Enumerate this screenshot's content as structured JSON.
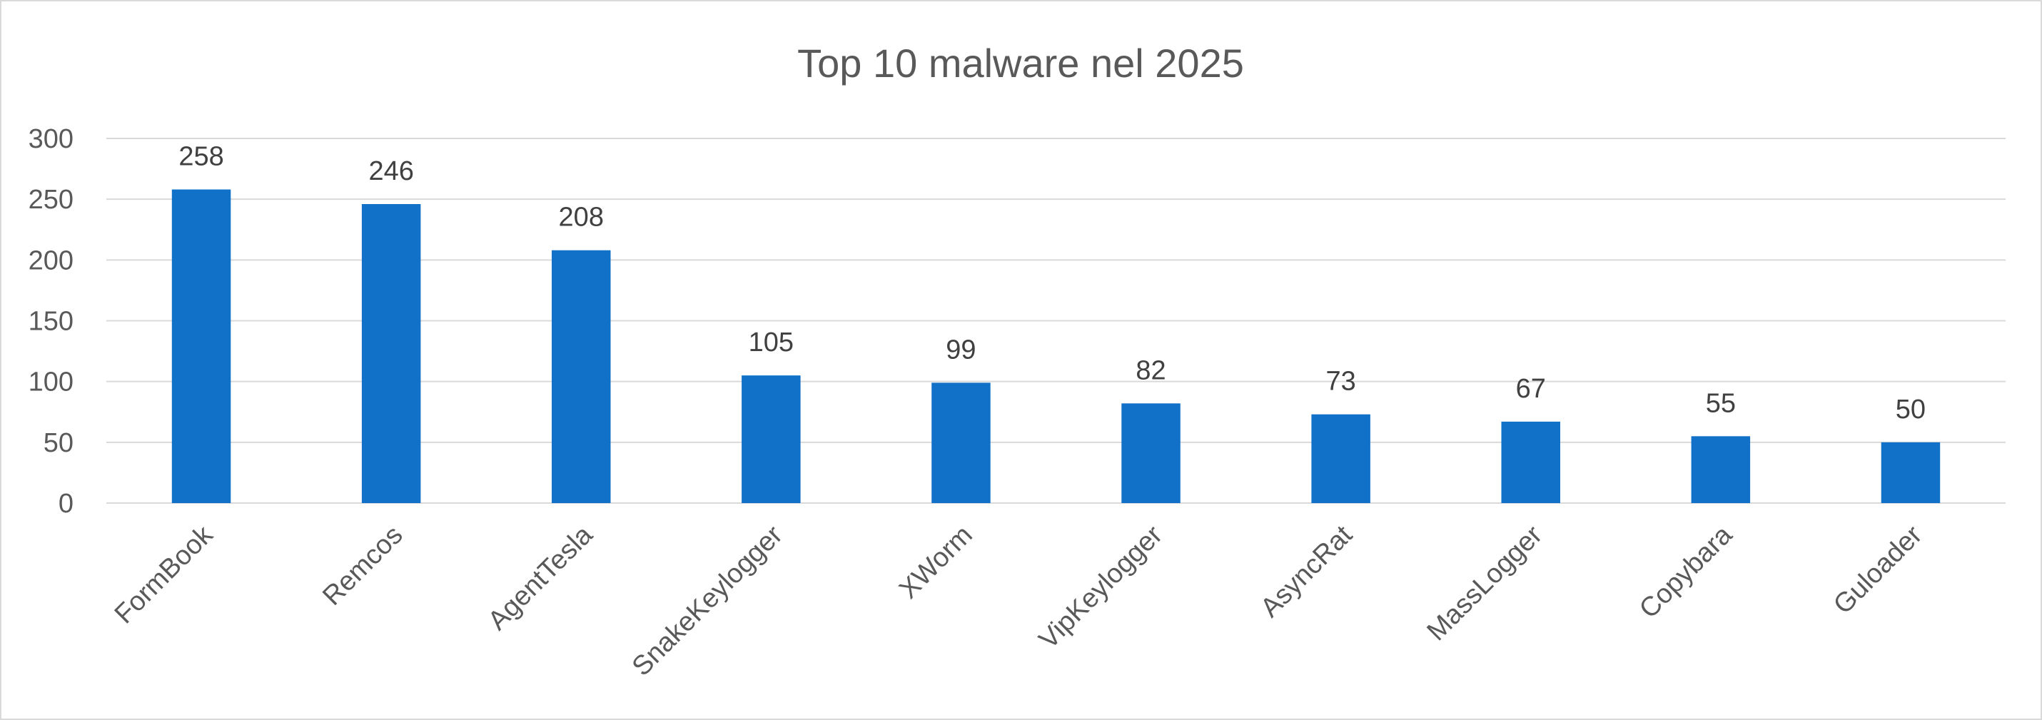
{
  "chart_data": {
    "type": "bar",
    "title": "Top 10 malware nel 2025",
    "xlabel": "",
    "ylabel": "",
    "categories": [
      "FormBook",
      "Remcos",
      "AgentTesla",
      "SnakeKeylogger",
      "XWorm",
      "VipKeylogger",
      "AsyncRat",
      "MassLogger",
      "Copybara",
      "Guloader"
    ],
    "values": [
      258,
      246,
      208,
      105,
      99,
      82,
      73,
      67,
      55,
      50
    ],
    "ylim": [
      0,
      300
    ],
    "yticks": [
      0,
      50,
      100,
      150,
      200,
      250,
      300
    ],
    "grid": true,
    "legend": "none",
    "data_labels": true,
    "bar_color": "#1170c8",
    "gridline_color": "#d9d9d9",
    "text_color": "#595959"
  }
}
